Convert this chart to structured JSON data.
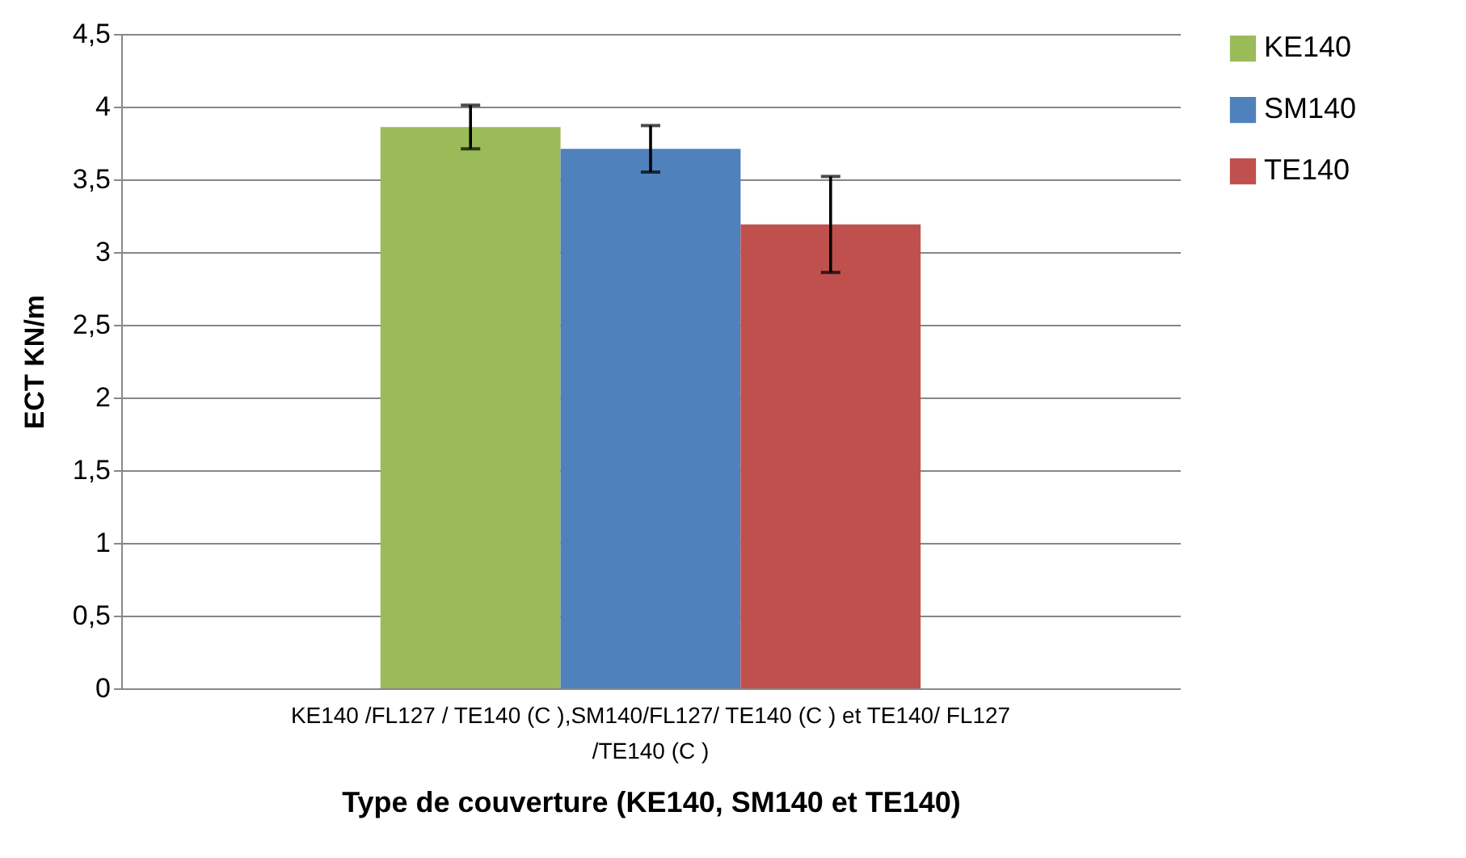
{
  "chart_data": {
    "type": "bar",
    "xlabel": "Type de couverture (KE140, SM140 et TE140)",
    "ylabel": "ECT   KN/m",
    "categories": [
      "KE140 /FL127 / TE140  (C ),SM140/FL127/ TE140 (C ) et TE140/ FL127 /TE140 (C )"
    ],
    "series": [
      {
        "name": "KE140",
        "color": "#9bbb59",
        "values": [
          3.86
        ],
        "errors": [
          0.15
        ]
      },
      {
        "name": "SM140",
        "color": "#4f81bd",
        "values": [
          3.71
        ],
        "errors": [
          0.16
        ]
      },
      {
        "name": "TE140",
        "color": "#c0504d",
        "values": [
          3.19
        ],
        "errors": [
          0.33
        ]
      }
    ],
    "ylim": [
      0,
      4.5
    ],
    "yticks": [
      0,
      {
        "value": 0.5,
        "label": "0,5"
      },
      1,
      {
        "value": 1.5,
        "label": "1,5"
      },
      2,
      {
        "value": 2.5,
        "label": "2,5"
      },
      3,
      {
        "value": 3.5,
        "label": "3,5"
      },
      4,
      {
        "value": 4.5,
        "label": "4,5"
      }
    ],
    "grid": "y",
    "legend": "right"
  }
}
